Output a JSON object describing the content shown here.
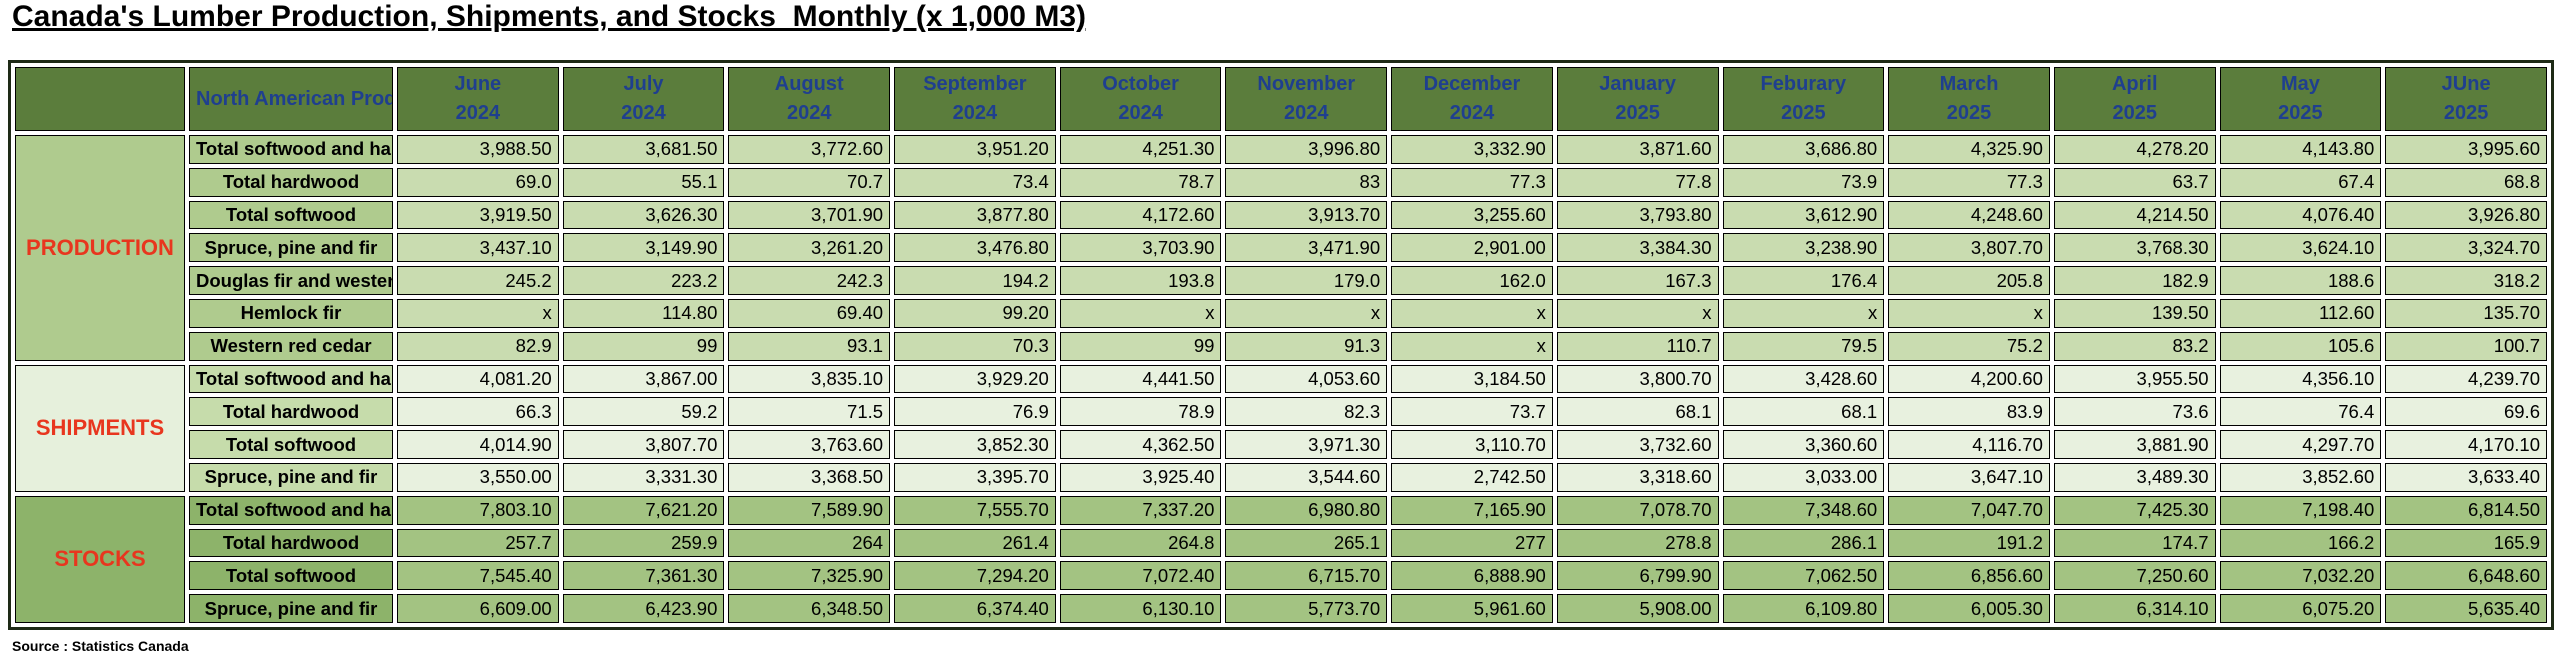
{
  "title": "Canada's Lumber Production, Shipments, and Stocks  Monthly (x 1,000 M3)",
  "header": {
    "napcs_label": "North American Product Classification System (NAPCS)",
    "months": [
      {
        "month": "June",
        "year": "2024"
      },
      {
        "month": "July",
        "year": "2024"
      },
      {
        "month": "August",
        "year": "2024"
      },
      {
        "month": "September",
        "year": "2024"
      },
      {
        "month": "October",
        "year": "2024"
      },
      {
        "month": "November",
        "year": "2024"
      },
      {
        "month": "December",
        "year": "2024"
      },
      {
        "month": "January",
        "year": "2025"
      },
      {
        "month": "Feburary",
        "year": "2025"
      },
      {
        "month": "March",
        "year": "2025"
      },
      {
        "month": "April",
        "year": "2025"
      },
      {
        "month": "May",
        "year": "2025"
      },
      {
        "month": "JUne",
        "year": "2025"
      }
    ]
  },
  "sections": [
    {
      "name": "PRODUCTION",
      "key": "production",
      "rows": [
        {
          "label": "Total softwood and hardwood",
          "values": [
            "3,988.50",
            "3,681.50",
            "3,772.60",
            "3,951.20",
            "4,251.30",
            "3,996.80",
            "3,332.90",
            "3,871.60",
            "3,686.80",
            "4,325.90",
            "4,278.20",
            "4,143.80",
            "3,995.60"
          ]
        },
        {
          "label": "Total hardwood",
          "values": [
            "69.0",
            "55.1",
            "70.7",
            "73.4",
            "78.7",
            "83",
            "77.3",
            "77.8",
            "73.9",
            "77.3",
            "63.7",
            "67.4",
            "68.8"
          ]
        },
        {
          "label": "Total softwood",
          "values": [
            "3,919.50",
            "3,626.30",
            "3,701.90",
            "3,877.80",
            "4,172.60",
            "3,913.70",
            "3,255.60",
            "3,793.80",
            "3,612.90",
            "4,248.60",
            "4,214.50",
            "4,076.40",
            "3,926.80"
          ]
        },
        {
          "label": "Spruce, pine and fir",
          "values": [
            "3,437.10",
            "3,149.90",
            "3,261.20",
            "3,476.80",
            "3,703.90",
            "3,471.90",
            "2,901.00",
            "3,384.30",
            "3,238.90",
            "3,807.70",
            "3,768.30",
            "3,624.10",
            "3,324.70"
          ]
        },
        {
          "label": "Douglas fir and western larch",
          "values": [
            "245.2",
            "223.2",
            "242.3",
            "194.2",
            "193.8",
            "179.0",
            "162.0",
            "167.3",
            "176.4",
            "205.8",
            "182.9",
            "188.6",
            "318.2"
          ]
        },
        {
          "label": "Hemlock fir",
          "values": [
            "x",
            "114.80",
            "69.40",
            "99.20",
            "x",
            "x",
            "x",
            "x",
            "x",
            "x",
            "139.50",
            "112.60",
            "135.70"
          ]
        },
        {
          "label": "Western red cedar",
          "values": [
            "82.9",
            "99",
            "93.1",
            "70.3",
            "99",
            "91.3",
            "x",
            "110.7",
            "79.5",
            "75.2",
            "83.2",
            "105.6",
            "100.7"
          ]
        }
      ]
    },
    {
      "name": "SHIPMENTS",
      "key": "shipments",
      "rows": [
        {
          "label": "Total softwood and hardwood",
          "values": [
            "4,081.20",
            "3,867.00",
            "3,835.10",
            "3,929.20",
            "4,441.50",
            "4,053.60",
            "3,184.50",
            "3,800.70",
            "3,428.60",
            "4,200.60",
            "3,955.50",
            "4,356.10",
            "4,239.70"
          ]
        },
        {
          "label": "Total hardwood",
          "values": [
            "66.3",
            "59.2",
            "71.5",
            "76.9",
            "78.9",
            "82.3",
            "73.7",
            "68.1",
            "68.1",
            "83.9",
            "73.6",
            "76.4",
            "69.6"
          ]
        },
        {
          "label": "Total softwood",
          "values": [
            "4,014.90",
            "3,807.70",
            "3,763.60",
            "3,852.30",
            "4,362.50",
            "3,971.30",
            "3,110.70",
            "3,732.60",
            "3,360.60",
            "4,116.70",
            "3,881.90",
            "4,297.70",
            "4,170.10"
          ]
        },
        {
          "label": "Spruce, pine and fir",
          "values": [
            "3,550.00",
            "3,331.30",
            "3,368.50",
            "3,395.70",
            "3,925.40",
            "3,544.60",
            "2,742.50",
            "3,318.60",
            "3,033.00",
            "3,647.10",
            "3,489.30",
            "3,852.60",
            "3,633.40"
          ]
        }
      ]
    },
    {
      "name": "STOCKS",
      "key": "stocks",
      "rows": [
        {
          "label": "Total softwood and hardwood",
          "values": [
            "7,803.10",
            "7,621.20",
            "7,589.90",
            "7,555.70",
            "7,337.20",
            "6,980.80",
            "7,165.90",
            "7,078.70",
            "7,348.60",
            "7,047.70",
            "7,425.30",
            "7,198.40",
            "6,814.50"
          ]
        },
        {
          "label": "Total hardwood",
          "values": [
            "257.7",
            "259.9",
            "264",
            "261.4",
            "264.8",
            "265.1",
            "277",
            "278.8",
            "286.1",
            "191.2",
            "174.7",
            "166.2",
            "165.9"
          ]
        },
        {
          "label": "Total softwood",
          "values": [
            "7,545.40",
            "7,361.30",
            "7,325.90",
            "7,294.20",
            "7,072.40",
            "6,715.70",
            "6,888.90",
            "6,799.90",
            "7,062.50",
            "6,856.60",
            "7,250.60",
            "7,032.20",
            "6,648.60"
          ]
        },
        {
          "label": "Spruce, pine and fir",
          "values": [
            "6,609.00",
            "6,423.90",
            "6,348.50",
            "6,374.40",
            "6,130.10",
            "5,773.70",
            "5,961.60",
            "5,908.00",
            "6,109.80",
            "6,005.30",
            "6,314.10",
            "6,075.20",
            "5,635.40"
          ]
        }
      ]
    }
  ],
  "source": "Source : Statistics Canada",
  "colors": {
    "header_bg": "#5b7d3c",
    "header_text": "#1f3f8f",
    "section_text": "#e8361e",
    "production_bg": "#c9dcb0",
    "shipments_bg": "#e8f1df",
    "stocks_bg": "#a3c382"
  }
}
